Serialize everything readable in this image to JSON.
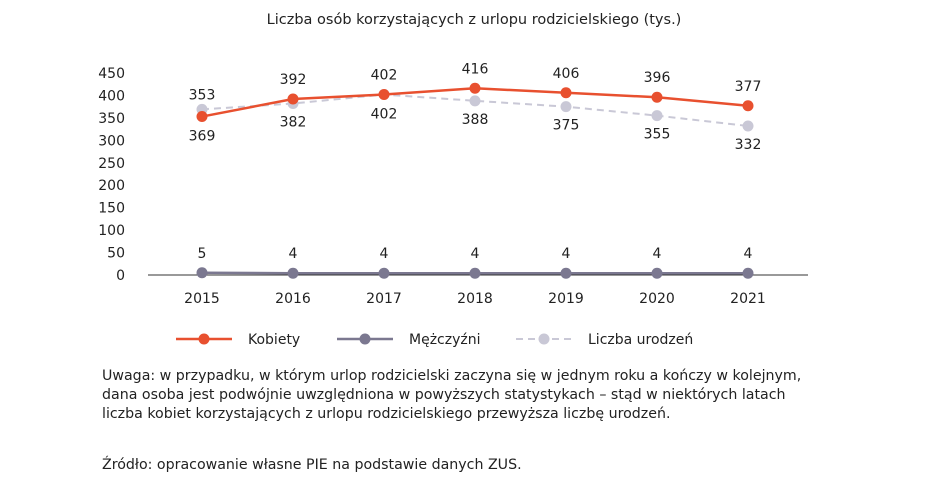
{
  "chart_data": {
    "type": "line",
    "title": "Liczba osób korzystających z urlopu rodzicielskiego (tys.)",
    "categories": [
      "2015",
      "2016",
      "2017",
      "2018",
      "2019",
      "2020",
      "2021"
    ],
    "ylim": [
      0,
      450
    ],
    "yticks": [
      "0",
      "50",
      "100",
      "150",
      "200",
      "250",
      "300",
      "350",
      "400",
      "450"
    ],
    "grid": false,
    "legend_position": "bottom",
    "series": [
      {
        "name": "Kobiety",
        "values": [
          353,
          392,
          402,
          416,
          406,
          396,
          377
        ],
        "color": "#e8502f",
        "style": "solid"
      },
      {
        "name": "Mężczyźni",
        "values": [
          5,
          4,
          4,
          4,
          4,
          4,
          4
        ],
        "color": "#7b7890",
        "style": "solid"
      },
      {
        "name": "Liczba urodzeń",
        "values": [
          369,
          382,
          402,
          388,
          375,
          355,
          332
        ],
        "color": "#c9c8d6",
        "style": "dashed"
      }
    ]
  },
  "note": "Uwaga: w przypadku, w którym urlop rodzicielski zaczyna się w jednym roku a kończy w kolejnym, dana osoba jest podwójnie uwzględniona w powyższych statystykach – stąd w niektórych latach liczba kobiet korzystających z urlopu rodzicielskiego przewyższa liczbę urodzeń.",
  "source": "Źródło: opracowanie własne PIE na podstawie danych ZUS."
}
